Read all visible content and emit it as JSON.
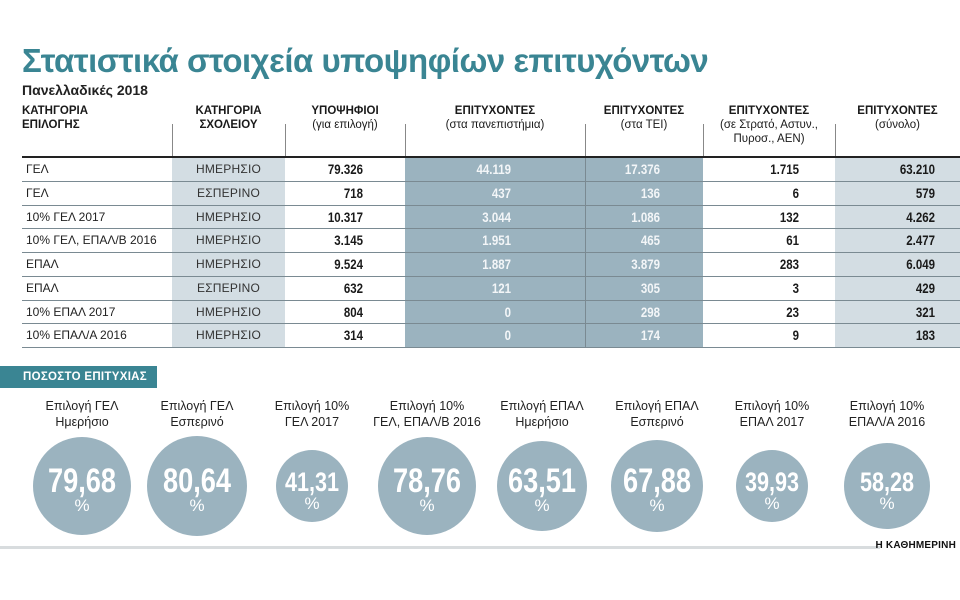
{
  "title": "Στατιστικά στοιχεία υποψηφίων επιτυχόντων",
  "subtitle": "Πανελλαδικές 2018",
  "table": {
    "headers": [
      {
        "bold": "ΚΑΤΗΓΟΡΙΑ",
        "bold2": "ΕΠΙΛΟΓΗΣ",
        "sub": ""
      },
      {
        "bold": "ΚΑΤΗΓΟΡΙΑ",
        "bold2": "ΣΧΟΛΕΙΟΥ",
        "sub": ""
      },
      {
        "bold": "ΥΠΟΨΗΦΙΟΙ",
        "sub": "(για επιλογή)"
      },
      {
        "bold": "ΕΠΙΤΥΧΟΝΤΕΣ",
        "sub": "(στα πανεπιστήμια)"
      },
      {
        "bold": "ΕΠΙΤΥΧΟΝΤΕΣ",
        "sub": "(στα ΤΕΙ)"
      },
      {
        "bold": "ΕΠΙΤΥΧΟΝΤΕΣ",
        "sub": "(σε Στρατό, Αστυν.,",
        "sub2": "Πυροσ., ΑΕΝ)"
      },
      {
        "bold": "ΕΠΙΤΥΧΟΝΤΕΣ",
        "sub": "(σύνολο)"
      }
    ],
    "rows": [
      {
        "category": "ΓΕΛ",
        "school": "ΗΜΕΡΗΣΙΟ",
        "candidates": "79.326",
        "universities": "44.119",
        "tei": "17.376",
        "military": "1.715",
        "total": "63.210"
      },
      {
        "category": "ΓΕΛ",
        "school": "ΕΣΠΕΡΙΝΟ",
        "candidates": "718",
        "universities": "437",
        "tei": "136",
        "military": "6",
        "total": "579"
      },
      {
        "category": "10% ΓΕΛ 2017",
        "school": "ΗΜΕΡΗΣΙΟ",
        "candidates": "10.317",
        "universities": "3.044",
        "tei": "1.086",
        "military": "132",
        "total": "4.262"
      },
      {
        "category": "10% ΓΕΛ, ΕΠΑΛ/Β 2016",
        "school": "ΗΜΕΡΗΣΙΟ",
        "candidates": "3.145",
        "universities": "1.951",
        "tei": "465",
        "military": "61",
        "total": "2.477"
      },
      {
        "category": "ΕΠΑΛ",
        "school": "ΗΜΕΡΗΣΙΟ",
        "candidates": "9.524",
        "universities": "1.887",
        "tei": "3.879",
        "military": "283",
        "total": "6.049"
      },
      {
        "category": "ΕΠΑΛ",
        "school": "ΕΣΠΕΡΙΝΟ",
        "candidates": "632",
        "universities": "121",
        "tei": "305",
        "military": "3",
        "total": "429"
      },
      {
        "category": "10% ΕΠΑΛ 2017",
        "school": "ΗΜΕΡΗΣΙΟ",
        "candidates": "804",
        "universities": "0",
        "tei": "298",
        "military": "23",
        "total": "321"
      },
      {
        "category": "10% ΕΠΑΛ/Α 2016",
        "school": "ΗΜΕΡΗΣΙΟ",
        "candidates": "314",
        "universities": "0",
        "tei": "174",
        "military": "9",
        "total": "183"
      }
    ]
  },
  "success_section": {
    "label": "ΠΟΣΟΣΤΟ ΕΠΙΤΥΧΙΑΣ",
    "bubbles": [
      {
        "line1": "Επιλογή ΓΕΛ",
        "line2": "Ημερήσιο",
        "value": "79,68",
        "unit": "%"
      },
      {
        "line1": "Επιλογή ΓΕΛ",
        "line2": "Εσπερινό",
        "value": "80,64",
        "unit": "%"
      },
      {
        "line1": "Επιλογή 10%",
        "line2": "ΓΕΛ 2017",
        "value": "41,31",
        "unit": "%"
      },
      {
        "line1": "Επιλογή 10%",
        "line2": "ΓΕΛ, ΕΠΑΛ/Β 2016",
        "value": "78,76",
        "unit": "%"
      },
      {
        "line1": "Επιλογή ΕΠΑΛ",
        "line2": "Ημερήσιο",
        "value": "63,51",
        "unit": "%"
      },
      {
        "line1": "Επιλογή ΕΠΑΛ",
        "line2": "Εσπερινό",
        "value": "67,88",
        "unit": "%"
      },
      {
        "line1": "Επιλογή 10%",
        "line2": "ΕΠΑΛ 2017",
        "value": "39,93",
        "unit": "%"
      },
      {
        "line1": "Επιλογή 10%",
        "line2": "ΕΠΑΛ/Α 2016",
        "value": "58,28",
        "unit": "%"
      }
    ]
  },
  "footer": {
    "brand": "Η ΚΑΘΗΜΕΡΙΝΗ"
  },
  "colors": {
    "title": "#3a8593",
    "bubble": "#9bb3bf",
    "dark_col": "#9bb3bf",
    "light_col": "#d3dde3"
  },
  "chart_data": [
    {
      "type": "table",
      "title": "Στατιστικά στοιχεία υποψηφίων επιτυχόντων",
      "subtitle": "Πανελλαδικές 2018",
      "columns": [
        "ΚΑΤΗΓΟΡΙΑ ΕΠΙΛΟΓΗΣ",
        "ΚΑΤΗΓΟΡΙΑ ΣΧΟΛΕΙΟΥ",
        "ΥΠΟΨΗΦΙΟΙ (για επιλογή)",
        "ΕΠΙΤΥΧΟΝΤΕΣ (στα πανεπιστήμια)",
        "ΕΠΙΤΥΧΟΝΤΕΣ (στα ΤΕΙ)",
        "ΕΠΙΤΥΧΟΝΤΕΣ (σε Στρατό, Αστυν., Πυροσ., ΑΕΝ)",
        "ΕΠΙΤΥΧΟΝΤΕΣ (σύνολο)"
      ],
      "rows": [
        [
          "ΓΕΛ",
          "ΗΜΕΡΗΣΙΟ",
          79326,
          44119,
          17376,
          1715,
          63210
        ],
        [
          "ΓΕΛ",
          "ΕΣΠΕΡΙΝΟ",
          718,
          437,
          136,
          6,
          579
        ],
        [
          "10% ΓΕΛ 2017",
          "ΗΜΕΡΗΣΙΟ",
          10317,
          3044,
          1086,
          132,
          4262
        ],
        [
          "10% ΓΕΛ, ΕΠΑΛ/Β 2016",
          "ΗΜΕΡΗΣΙΟ",
          3145,
          1951,
          465,
          61,
          2477
        ],
        [
          "ΕΠΑΛ",
          "ΗΜΕΡΗΣΙΟ",
          9524,
          1887,
          3879,
          283,
          6049
        ],
        [
          "ΕΠΑΛ",
          "ΕΣΠΕΡΙΝΟ",
          632,
          121,
          305,
          3,
          429
        ],
        [
          "10% ΕΠΑΛ 2017",
          "ΗΜΕΡΗΣΙΟ",
          804,
          0,
          298,
          23,
          321
        ],
        [
          "10% ΕΠΑΛ/Α 2016",
          "ΗΜΕΡΗΣΙΟ",
          314,
          0,
          174,
          9,
          183
        ]
      ]
    },
    {
      "type": "bubble",
      "title": "ΠΟΣΟΣΤΟ ΕΠΙΤΥΧΙΑΣ",
      "categories": [
        "Επιλογή ΓΕΛ Ημερήσιο",
        "Επιλογή ΓΕΛ Εσπερινό",
        "Επιλογή 10% ΓΕΛ 2017",
        "Επιλογή 10% ΓΕΛ, ΕΠΑΛ/Β 2016",
        "Επιλογή ΕΠΑΛ Ημερήσιο",
        "Επιλογή ΕΠΑΛ Εσπερινό",
        "Επιλογή 10% ΕΠΑΛ 2017",
        "Επιλογή 10% ΕΠΑΛ/Α 2016"
      ],
      "values": [
        79.68,
        80.64,
        41.31,
        78.76,
        63.51,
        67.88,
        39.93,
        58.28
      ],
      "unit": "%"
    }
  ]
}
